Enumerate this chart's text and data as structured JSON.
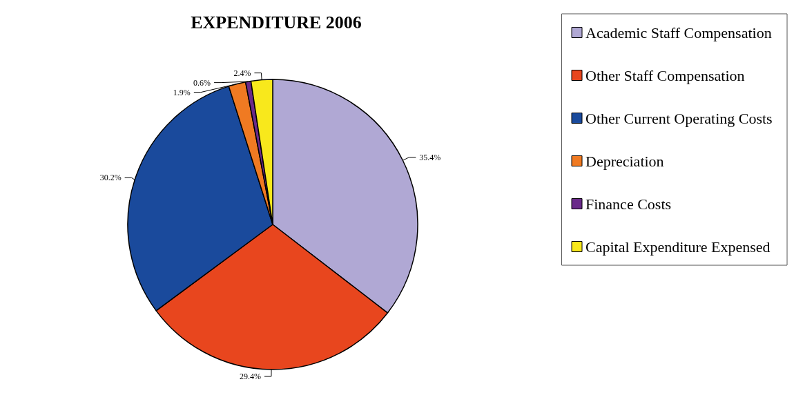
{
  "chart_data": {
    "type": "pie",
    "title": "EXPENDITURE 2006",
    "categories": [
      "Academic Staff Compensation",
      "Other Staff Compensation",
      "Other Current Operating Costs",
      "Depreciation",
      "Finance Costs",
      "Capital Expenditure Expensed"
    ],
    "values": [
      35.4,
      29.4,
      30.2,
      1.9,
      0.6,
      2.4
    ],
    "value_labels": [
      "35.4%",
      "29.4%",
      "30.2%",
      "1.9%",
      "0.6%",
      "2.4%"
    ],
    "colors": [
      "#b0a8d4",
      "#e8461e",
      "#1a4a9c",
      "#f07a22",
      "#6a2a8a",
      "#f8e81c"
    ],
    "legend": "right"
  }
}
